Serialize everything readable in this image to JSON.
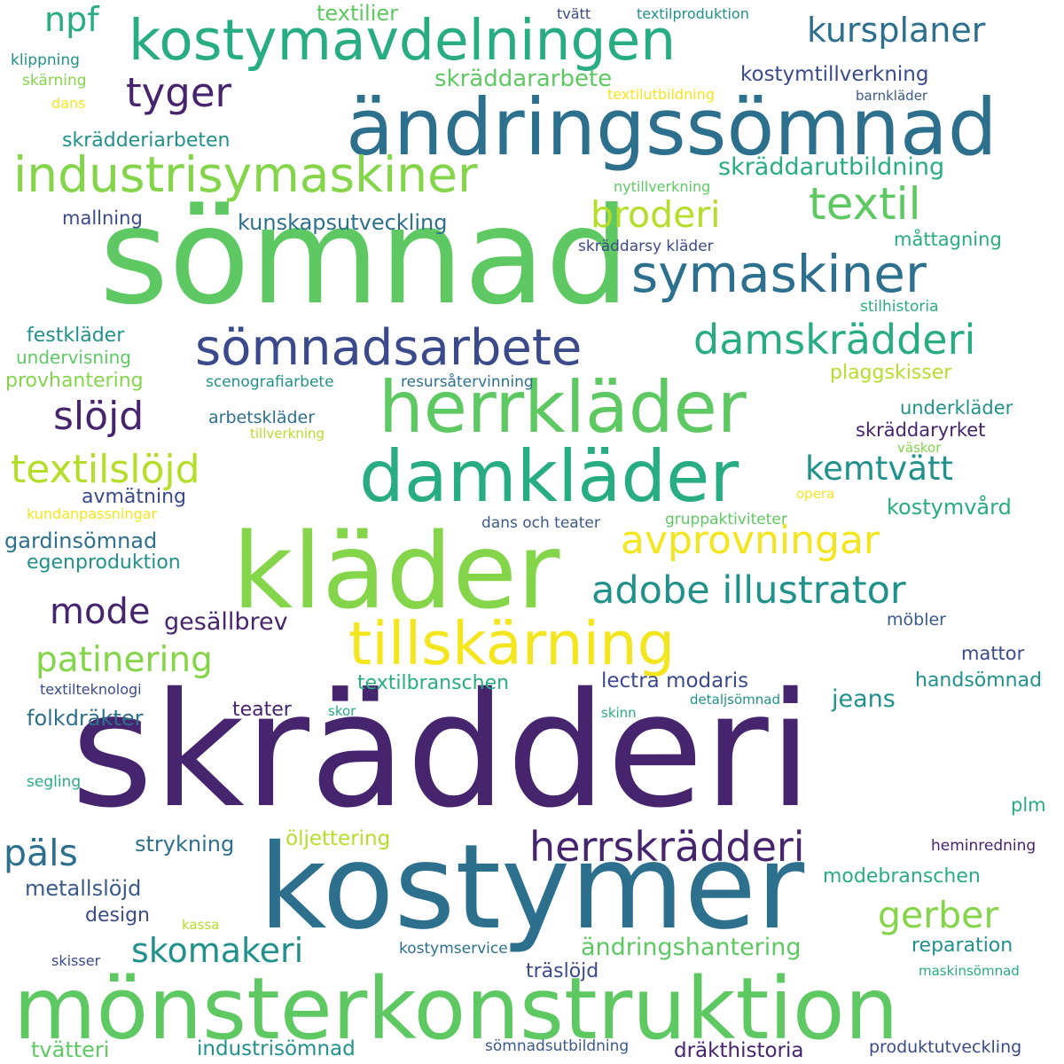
{
  "palette": {
    "dark_purple": "#46246e",
    "indigo": "#3b4a8a",
    "slate_blue": "#3a5a8c",
    "teal_blue": "#2d708e",
    "teal": "#21918c",
    "green_teal": "#27ad81",
    "green": "#5ec962",
    "light_green": "#85d54a",
    "lime": "#b5de2b",
    "yellow": "#f4e61e"
  },
  "words": [
    "sömnad",
    "skrädderi",
    "kostymer",
    "mönsterkonstruktion",
    "kläder",
    "ändringssömnad",
    "herrkläder",
    "damkläder",
    "kostymavdelningen",
    "tillskärning",
    "industrisymaskiner",
    "symaskiner",
    "sömnadsarbete",
    "damskrädderi",
    "herrskrädderi",
    "adobe illustrator",
    "textilslöjd",
    "textil",
    "avprovningar",
    "tyger",
    "broderi",
    "patinering",
    "kursplaner",
    "kemtvätt",
    "slöjd",
    "mode",
    "skomakeri",
    "gerber",
    "päls",
    "npf",
    "skräddarutbildning",
    "ändringshantering",
    "gesällbrev",
    "jeans",
    "skräddararbete",
    "kostymtillverkning",
    "kunskapsutveckling",
    "skrädderiarbeten",
    "textilier",
    "festkläder",
    "undervisning",
    "provhantering",
    "gardinsömnad",
    "egenproduktion",
    "avmätning",
    "kostymvård",
    "underkläder",
    "skräddaryrket",
    "plaggskisser",
    "måttagning",
    "mallning",
    "folkdräkter",
    "strykning",
    "öljettering",
    "metallslöjd",
    "modebranschen",
    "textilbranschen",
    "lectra modaris",
    "handsömnad",
    "reparation",
    "tvätteri",
    "industrisömnad",
    "dräkthistoria",
    "produktutveckling",
    "sömnadsutbildning",
    "träslöjd",
    "design",
    "teater",
    "arbetskläder",
    "scenografiarbete",
    "resursåtervinning",
    "stilhistoria",
    "skräddarsy kläder",
    "nytillverkning",
    "mattor",
    "möbler",
    "plm",
    "kostymservice",
    "textilteknologi",
    "dans och teater",
    "gruppaktiviteter",
    "kundanpassningar",
    "detaljsömnad",
    "heminredning",
    "maskinsömnad",
    "skisser",
    "segling",
    "klippning",
    "skärning",
    "dans",
    "tvätt",
    "textilproduktion",
    "textilutbildning",
    "barnkläder",
    "tillverkning",
    "väskor",
    "opera",
    "skor",
    "skinn",
    "kassa"
  ]
}
